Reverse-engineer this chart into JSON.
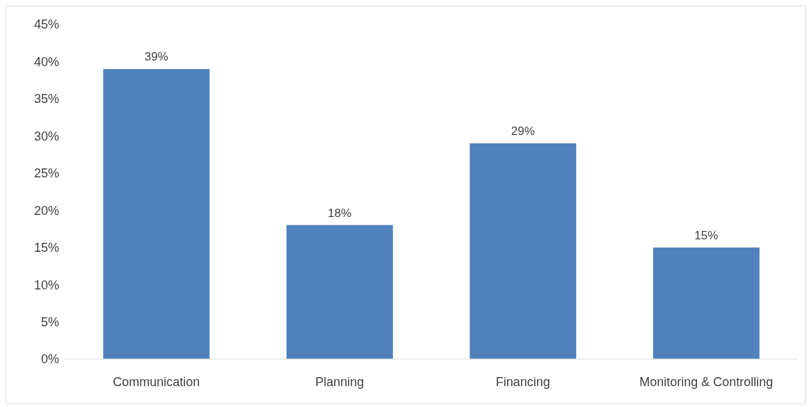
{
  "chart_data": {
    "type": "bar",
    "categories": [
      "Communication",
      "Planning",
      "Financing",
      "Monitoring & Controlling"
    ],
    "values": [
      39,
      18,
      29,
      15
    ],
    "color": "#4f81bd",
    "value_labels": [
      "39%",
      "18%",
      "29%",
      "15%"
    ],
    "ylim": [
      0,
      45
    ],
    "yticks": [
      {
        "value": 0,
        "label": "0%"
      },
      {
        "value": 5,
        "label": "5%"
      },
      {
        "value": 10,
        "label": "10%"
      },
      {
        "value": 15,
        "label": "15%"
      },
      {
        "value": 20,
        "label": "20%"
      },
      {
        "value": 25,
        "label": "25%"
      },
      {
        "value": 30,
        "label": "30%"
      },
      {
        "value": 35,
        "label": "35%"
      },
      {
        "value": 40,
        "label": "40%"
      },
      {
        "value": 45,
        "label": "45%"
      }
    ],
    "grid": false,
    "legend": false
  }
}
